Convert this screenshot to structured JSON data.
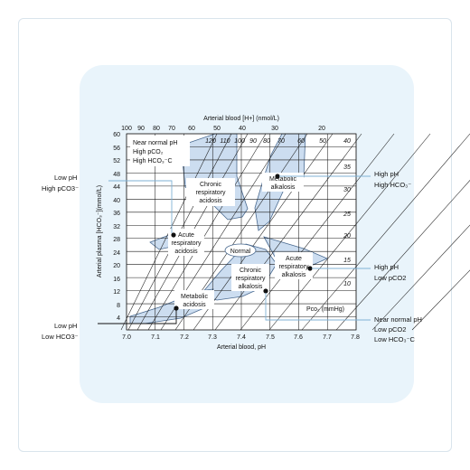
{
  "top_axis": {
    "title": "Arterial blood [H+] (nmol/L)",
    "ticks": [
      "100",
      "90",
      "80",
      "70",
      "60",
      "50",
      "40",
      "30",
      "20"
    ]
  },
  "bottom_axis": {
    "title": "Arterial blood, pH",
    "ticks": [
      "7.0",
      "7.1",
      "7.2",
      "7.3",
      "7.4",
      "7.5",
      "7.6",
      "7.7",
      "7.8"
    ]
  },
  "left_axis": {
    "title": "Arterial plasma [HCO₃⁻](mmol/L)",
    "ticks": [
      "60",
      "56",
      "52",
      "48",
      "44",
      "40",
      "36",
      "32",
      "28",
      "24",
      "20",
      "16",
      "12",
      "8",
      "4"
    ]
  },
  "pco2_label": "Pco₂ (mmHg)",
  "isobar_top_labels": [
    "120",
    "110",
    "100",
    "90",
    "80",
    "70",
    "60",
    "50",
    "40"
  ],
  "isobar_right_labels": [
    "35",
    "30",
    "25",
    "20",
    "15",
    "10"
  ],
  "inset_text": [
    "Near normal pH",
    "High pCO₂",
    "High HCO₃⁻C"
  ],
  "regions": {
    "chronic_resp_acidosis": [
      "Chronic",
      "respiratory",
      "acidosis"
    ],
    "metabolic_alkalosis": [
      "Metabolic",
      "alkalosis"
    ],
    "acute_resp_acidosis": [
      "Acute",
      "respiratory",
      "acidosis"
    ],
    "normal": "Normal",
    "acute_resp_alkalosis": [
      "Acute",
      "respiratory",
      "alkalosis"
    ],
    "chronic_resp_alkalosis": [
      "Chronic",
      "respiratory",
      "alkalosis"
    ],
    "metabolic_acidosis": [
      "Metabolic",
      "acidosis"
    ]
  },
  "callouts": {
    "left_top": [
      "Low pH",
      "High pCO3⁻"
    ],
    "left_bottom": [
      "Low pH",
      "Low HCO3⁻"
    ],
    "right_top": [
      "High pH",
      "High HCO₃⁻"
    ],
    "right_mid": [
      "High pH",
      "Low pCO2"
    ],
    "right_bottom": [
      "Near normal pH",
      "Low pCO2",
      "Low HCO₃⁻C"
    ]
  },
  "colors": {
    "region_fill": "#c6d9ee",
    "region_stroke": "#4a6a90",
    "panel": "#e9f4fb",
    "line": "#222222"
  }
}
